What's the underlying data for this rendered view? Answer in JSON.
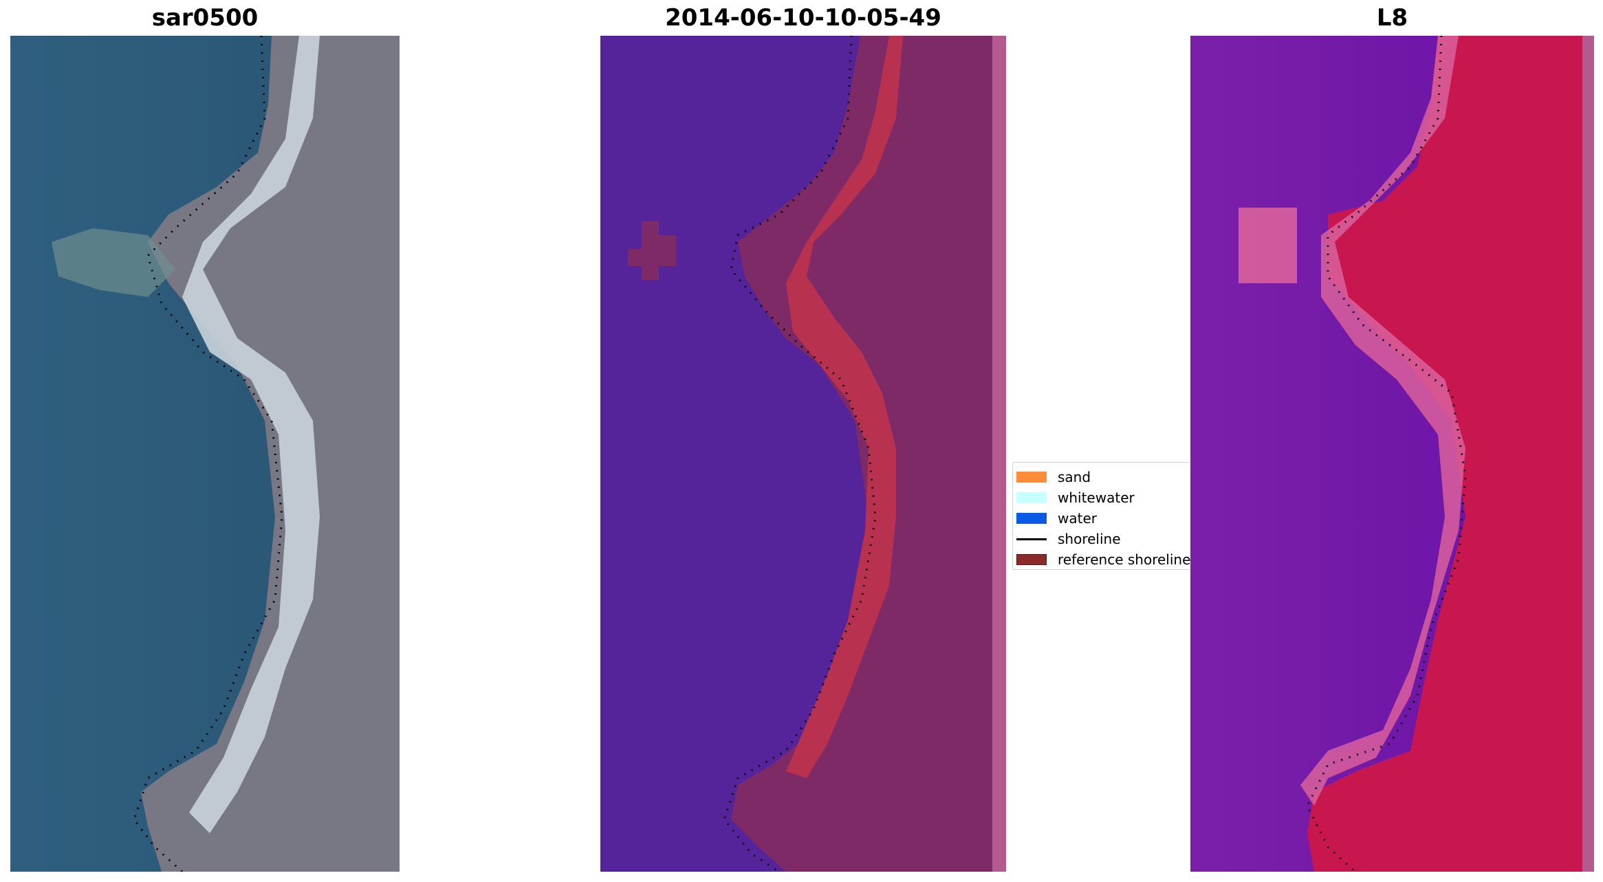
{
  "panels": [
    {
      "title": "sar0500"
    },
    {
      "title": "2014-06-10-10-05-49"
    },
    {
      "title": "L8"
    }
  ],
  "legend": {
    "items": [
      {
        "label": "sand",
        "color": "#ff8c3a",
        "kind": "patch"
      },
      {
        "label": "whitewater",
        "color": "#c8ffff",
        "kind": "patch"
      },
      {
        "label": "water",
        "color": "#0a5ae6",
        "kind": "patch"
      },
      {
        "label": "shoreline",
        "color": "#000000",
        "kind": "line"
      },
      {
        "label": "reference shoreline",
        "color": "#8b2a2a",
        "kind": "patch"
      }
    ]
  },
  "colors": {
    "rgb_water": "#2f5a78",
    "rgb_land": "#7a7a86",
    "class_water": "#56249a",
    "class_land": "#7d2a66",
    "class_sand": "#b83250",
    "index_water": "#7418a8",
    "index_land": "#c8174e"
  }
}
